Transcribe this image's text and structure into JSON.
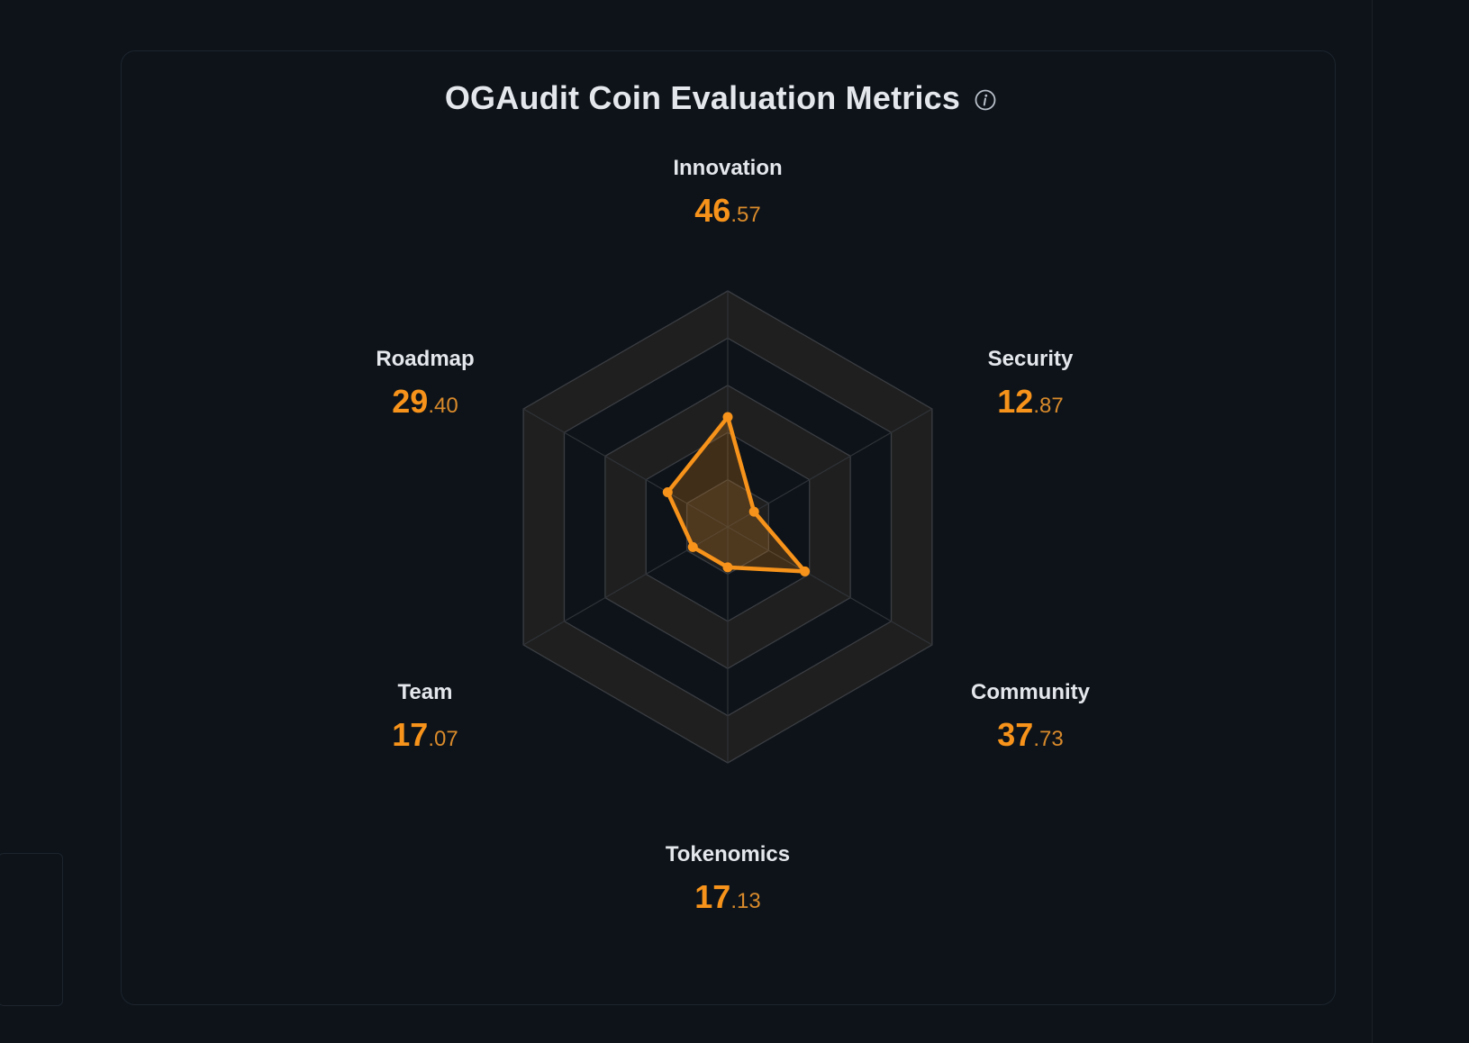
{
  "title": "OGAudit Coin Evaluation Metrics",
  "colors": {
    "accent": "#f7931a",
    "background": "#0d1319",
    "text": "#e4e7ec"
  },
  "icons": {
    "info": "info-circle-icon"
  },
  "chart_data": {
    "type": "radar",
    "title": "OGAudit Coin Evaluation Metrics",
    "range": [
      0,
      100
    ],
    "rings": 5,
    "categories": [
      "Innovation",
      "Security",
      "Community",
      "Tokenomics",
      "Team",
      "Roadmap"
    ],
    "values": [
      46.57,
      12.87,
      37.73,
      17.13,
      17.07,
      29.4
    ],
    "labels": [
      {
        "name": "Innovation",
        "int": "46",
        "dec": ".57"
      },
      {
        "name": "Security",
        "int": "12",
        "dec": ".87"
      },
      {
        "name": "Community",
        "int": "37",
        "dec": ".73"
      },
      {
        "name": "Tokenomics",
        "int": "17",
        "dec": ".13"
      },
      {
        "name": "Team",
        "int": "17",
        "dec": ".07"
      },
      {
        "name": "Roadmap",
        "int": "29",
        "dec": ".40"
      }
    ]
  }
}
